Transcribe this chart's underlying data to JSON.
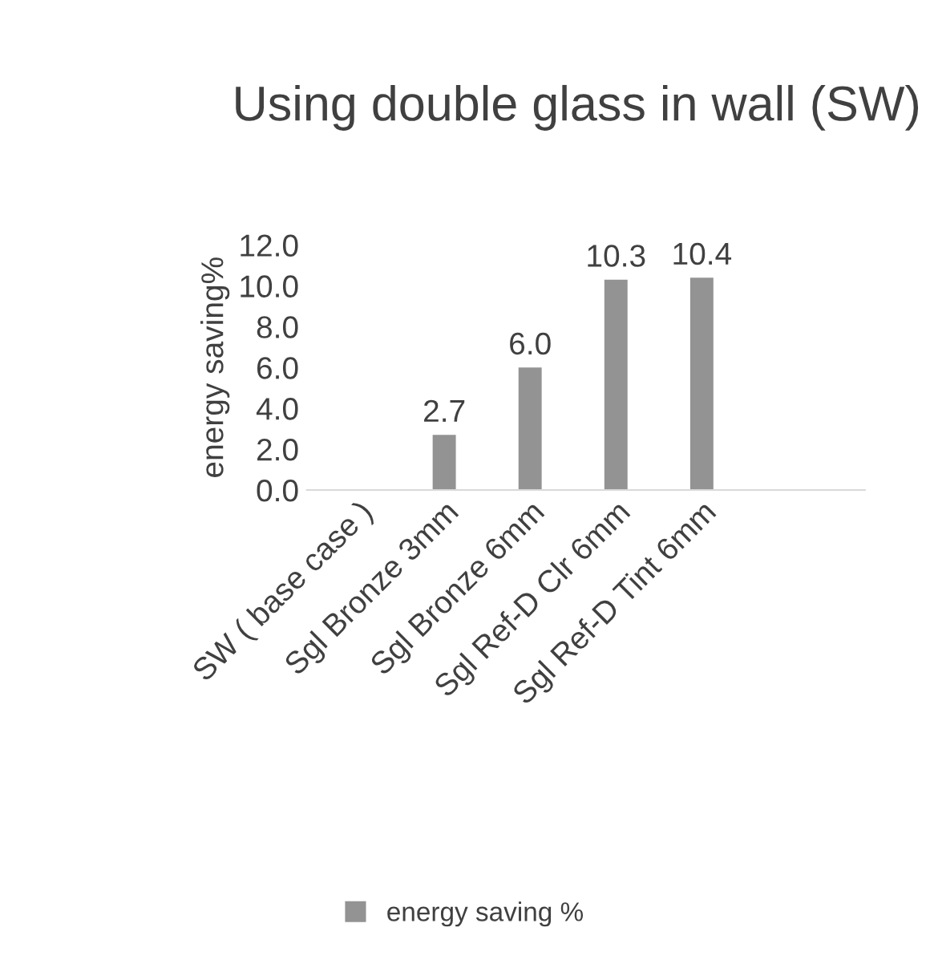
{
  "chart_data": {
    "type": "bar",
    "title": "Using double glass in wall (SW)",
    "ylabel": "energy saving%",
    "categories": [
      "SW ( base case )",
      "Sgl Bronze 3mm",
      "Sgl Bronze 6mm",
      "Sgl Ref-D Clr 6mm",
      "Sgl Ref-D Tint 6mm"
    ],
    "series": [
      {
        "name": "energy saving %",
        "color": "#939393",
        "values": [
          0,
          2.7,
          6.0,
          10.3,
          10.4
        ],
        "value_labels": [
          null,
          "2.7",
          "6.0",
          "10.3",
          "10.4"
        ]
      }
    ],
    "ylim": [
      0,
      12
    ],
    "yticks": [
      {
        "value": 0,
        "label": "0.0"
      },
      {
        "value": 2,
        "label": "2.0"
      },
      {
        "value": 4,
        "label": "4.0"
      },
      {
        "value": 6,
        "label": "6.0"
      },
      {
        "value": 8,
        "label": "8.0"
      },
      {
        "value": 10,
        "label": "10.0"
      },
      {
        "value": 12,
        "label": "12.0"
      }
    ],
    "grid": false,
    "legend": "bottom"
  }
}
